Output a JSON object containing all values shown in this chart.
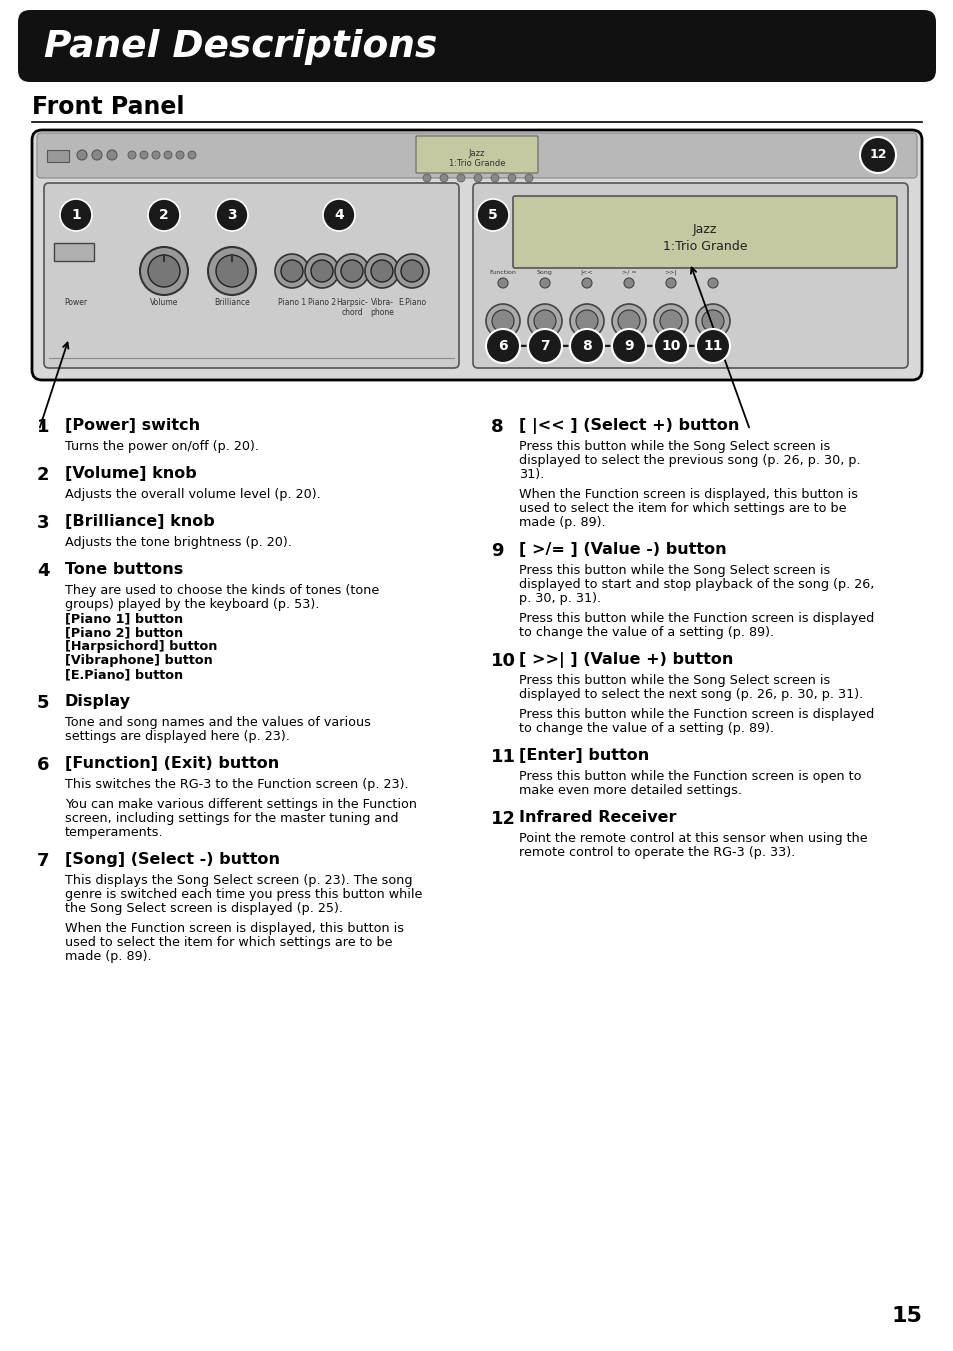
{
  "bg_color": "#ffffff",
  "header_bg": "#111111",
  "header_text": "Panel Descriptions",
  "header_text_color": "#ffffff",
  "section_title": "Front Panel",
  "page_number": "15",
  "items_left": [
    {
      "num": "1",
      "title": "[Power] switch",
      "body_parts": [
        {
          "text": "Turns the power on/off (p. 20).",
          "bold": false
        }
      ]
    },
    {
      "num": "2",
      "title": "[Volume] knob",
      "body_parts": [
        {
          "text": "Adjusts the overall volume level (p. 20).",
          "bold": false
        }
      ]
    },
    {
      "num": "3",
      "title": "[Brilliance] knob",
      "body_parts": [
        {
          "text": "Adjusts the tone brightness (p. 20).",
          "bold": false
        }
      ]
    },
    {
      "num": "4",
      "title": "Tone buttons",
      "body_parts": [
        {
          "text": "They are used to choose the kinds of tones (tone",
          "bold": false
        },
        {
          "text": "groups) played by the keyboard (p. 53).",
          "bold": false
        },
        {
          "text": "[Piano 1] button",
          "bold": true
        },
        {
          "text": "[Piano 2] button",
          "bold": true
        },
        {
          "text": "[Harpsichord] button",
          "bold": true
        },
        {
          "text": "[Vibraphone] button",
          "bold": true
        },
        {
          "text": "[E.Piano] button",
          "bold": true
        }
      ]
    },
    {
      "num": "5",
      "title": "Display",
      "body_parts": [
        {
          "text": "Tone and song names and the values of various",
          "bold": false
        },
        {
          "text": "settings are displayed here (p. 23).",
          "bold": false
        }
      ]
    },
    {
      "num": "6",
      "title": "[Function] (Exit) button",
      "body_parts": [
        {
          "text": "This switches the RG-3 to the Function screen (p. 23).",
          "bold": false
        },
        {
          "text": "",
          "bold": false
        },
        {
          "text": "You can make various different settings in the Function",
          "bold": false
        },
        {
          "text": "screen, including settings for the master tuning and",
          "bold": false
        },
        {
          "text": "temperaments.",
          "bold": false
        }
      ]
    },
    {
      "num": "7",
      "title": "[Song] (Select -) button",
      "body_parts": [
        {
          "text": "This displays the Song Select screen (p. 23). The song",
          "bold": false
        },
        {
          "text": "genre is switched each time you press this button while",
          "bold": false
        },
        {
          "text": "the Song Select screen is displayed (p. 25).",
          "bold": false
        },
        {
          "text": "",
          "bold": false
        },
        {
          "text": "When the Function screen is displayed, this button is",
          "bold": false
        },
        {
          "text": "used to select the item for which settings are to be",
          "bold": false
        },
        {
          "text": "made (p. 89).",
          "bold": false
        }
      ]
    }
  ],
  "items_right": [
    {
      "num": "8",
      "title": "[ |<< ] (Select +) button",
      "body_parts": [
        {
          "text": "Press this button while the Song Select screen is",
          "bold": false
        },
        {
          "text": "displayed to select the previous song (p. 26, p. 30, p.",
          "bold": false
        },
        {
          "text": "31).",
          "bold": false
        },
        {
          "text": "",
          "bold": false
        },
        {
          "text": "When the Function screen is displayed, this button is",
          "bold": false
        },
        {
          "text": "used to select the item for which settings are to be",
          "bold": false
        },
        {
          "text": "made (p. 89).",
          "bold": false
        }
      ]
    },
    {
      "num": "9",
      "title": "[ >/= ] (Value -) button",
      "body_parts": [
        {
          "text": "Press this button while the Song Select screen is",
          "bold": false
        },
        {
          "text": "displayed to start and stop playback of the song (p. 26,",
          "bold": false
        },
        {
          "text": "p. 30, p. 31).",
          "bold": false
        },
        {
          "text": "",
          "bold": false
        },
        {
          "text": "Press this button while the Function screen is displayed",
          "bold": false
        },
        {
          "text": "to change the value of a setting (p. 89).",
          "bold": false
        }
      ]
    },
    {
      "num": "10",
      "title": "[ >>| ] (Value +) button",
      "body_parts": [
        {
          "text": "Press this button while the Song Select screen is",
          "bold": false
        },
        {
          "text": "displayed to select the next song (p. 26, p. 30, p. 31).",
          "bold": false
        },
        {
          "text": "",
          "bold": false
        },
        {
          "text": "Press this button while the Function screen is displayed",
          "bold": false
        },
        {
          "text": "to change the value of a setting (p. 89).",
          "bold": false
        }
      ]
    },
    {
      "num": "11",
      "title": "[Enter] button",
      "body_parts": [
        {
          "text": "Press this button while the Function screen is open to",
          "bold": false
        },
        {
          "text": "make even more detailed settings.",
          "bold": false
        }
      ]
    },
    {
      "num": "12",
      "title": "Infrared Receiver",
      "body_parts": [
        {
          "text": "Point the remote control at this sensor when using the",
          "bold": false
        },
        {
          "text": "remote control to operate the RG-3 (p. 33).",
          "bold": false
        }
      ]
    }
  ]
}
